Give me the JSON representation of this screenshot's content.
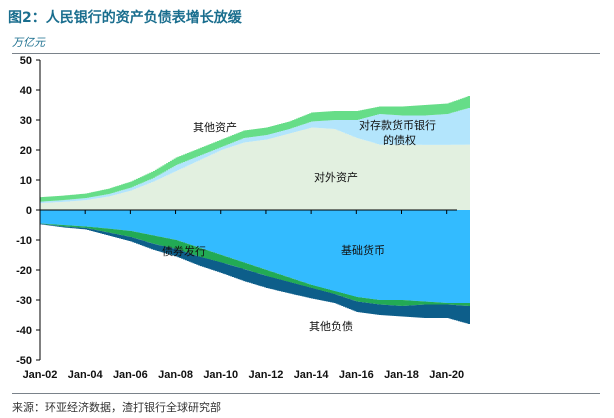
{
  "header": {
    "title": "图2：人民银行的资产负债表增长放缓",
    "unit": "万亿元"
  },
  "footer": {
    "source": "来源：环亚经济数据，渣打银行全球研究部"
  },
  "chart_data": {
    "type": "area",
    "title": "图2：人民银行的资产负债表增长放缓",
    "ylabel": "万亿元",
    "xlabel": "",
    "ylim": [
      -50,
      50
    ],
    "yticks": [
      50,
      40,
      30,
      20,
      10,
      0,
      -10,
      -20,
      -30,
      -40,
      -50
    ],
    "xtick_labels": [
      "Jan-02",
      "Jan-04",
      "Jan-06",
      "Jan-08",
      "Jan-10",
      "Jan-12",
      "Jan-14",
      "Jan-16",
      "Jan-18",
      "Jan-20"
    ],
    "xtick_years": [
      2002,
      2004,
      2006,
      2008,
      2010,
      2012,
      2014,
      2016,
      2018,
      2020
    ],
    "xlim_years": [
      2002,
      2021
    ],
    "x": [
      2002,
      2003,
      2004,
      2005,
      2006,
      2007,
      2008,
      2009,
      2010,
      2011,
      2012,
      2013,
      2014,
      2015,
      2016,
      2017,
      2018,
      2019,
      2020,
      2020.95
    ],
    "positive_series_stacked": [
      {
        "name": "对外资产",
        "color": "#e2f0e0",
        "values": [
          2.3,
          2.7,
          3.3,
          4.5,
          6.5,
          9.5,
          13.0,
          16.5,
          20.0,
          22.5,
          23.5,
          25.5,
          27.5,
          27.0,
          24.0,
          21.8,
          21.8,
          21.7,
          21.7,
          21.8
        ]
      },
      {
        "name": "对存款货币银行的债权",
        "color": "#b3e5fc",
        "values": [
          0.5,
          0.6,
          0.7,
          0.8,
          1.0,
          1.2,
          2.0,
          1.5,
          1.0,
          1.5,
          1.5,
          1.5,
          2.0,
          3.0,
          6.0,
          10.2,
          9.7,
          9.8,
          10.3,
          12.2
        ]
      },
      {
        "name": "其他资产",
        "color": "#66dd88",
        "values": [
          1.5,
          1.5,
          1.5,
          1.8,
          2.0,
          2.3,
          2.5,
          2.5,
          2.5,
          2.5,
          2.5,
          2.5,
          3.0,
          3.0,
          3.0,
          2.5,
          3.0,
          3.5,
          3.5,
          4.0
        ]
      }
    ],
    "negative_series_stacked": [
      {
        "name": "基础货币",
        "color": "#33bbff",
        "values": [
          -4.5,
          -5.0,
          -5.5,
          -6.2,
          -7.0,
          -8.5,
          -10.0,
          -12.5,
          -15.0,
          -17.5,
          -20.0,
          -22.5,
          -25.0,
          -27.0,
          -29.0,
          -30.0,
          -30.0,
          -30.5,
          -31.0,
          -31.0
        ]
      },
      {
        "name": "债券发行",
        "color": "#22aa55",
        "values": [
          -0.1,
          -0.5,
          -0.5,
          -1.3,
          -2.0,
          -2.8,
          -3.0,
          -3.0,
          -2.5,
          -2.2,
          -2.0,
          -1.5,
          -1.0,
          -1.0,
          -1.5,
          -1.5,
          -2.0,
          -1.0,
          -0.5,
          -1.0
        ]
      },
      {
        "name": "其他负债",
        "color": "#0d5e8a",
        "values": [
          -0.2,
          -0.3,
          -0.5,
          -1.0,
          -1.5,
          -2.0,
          -2.5,
          -3.0,
          -3.5,
          -4.0,
          -4.0,
          -3.8,
          -3.5,
          -3.0,
          -3.5,
          -3.5,
          -3.5,
          -4.5,
          -4.5,
          -6.0
        ]
      }
    ],
    "annotations": [
      {
        "text": "其他资产",
        "series": "其他资产"
      },
      {
        "text": "对存款货币银行",
        "series": "对存款货币银行的债权"
      },
      {
        "text": "的债权",
        "series": "对存款货币银行的债权"
      },
      {
        "text": "对外资产",
        "series": "对外资产"
      },
      {
        "text": "债券发行",
        "series": "债券发行"
      },
      {
        "text": "基础货币",
        "series": "基础货币"
      },
      {
        "text": "其他负债",
        "series": "其他负债"
      }
    ],
    "grid": false,
    "legend": "none (inline labels)"
  }
}
